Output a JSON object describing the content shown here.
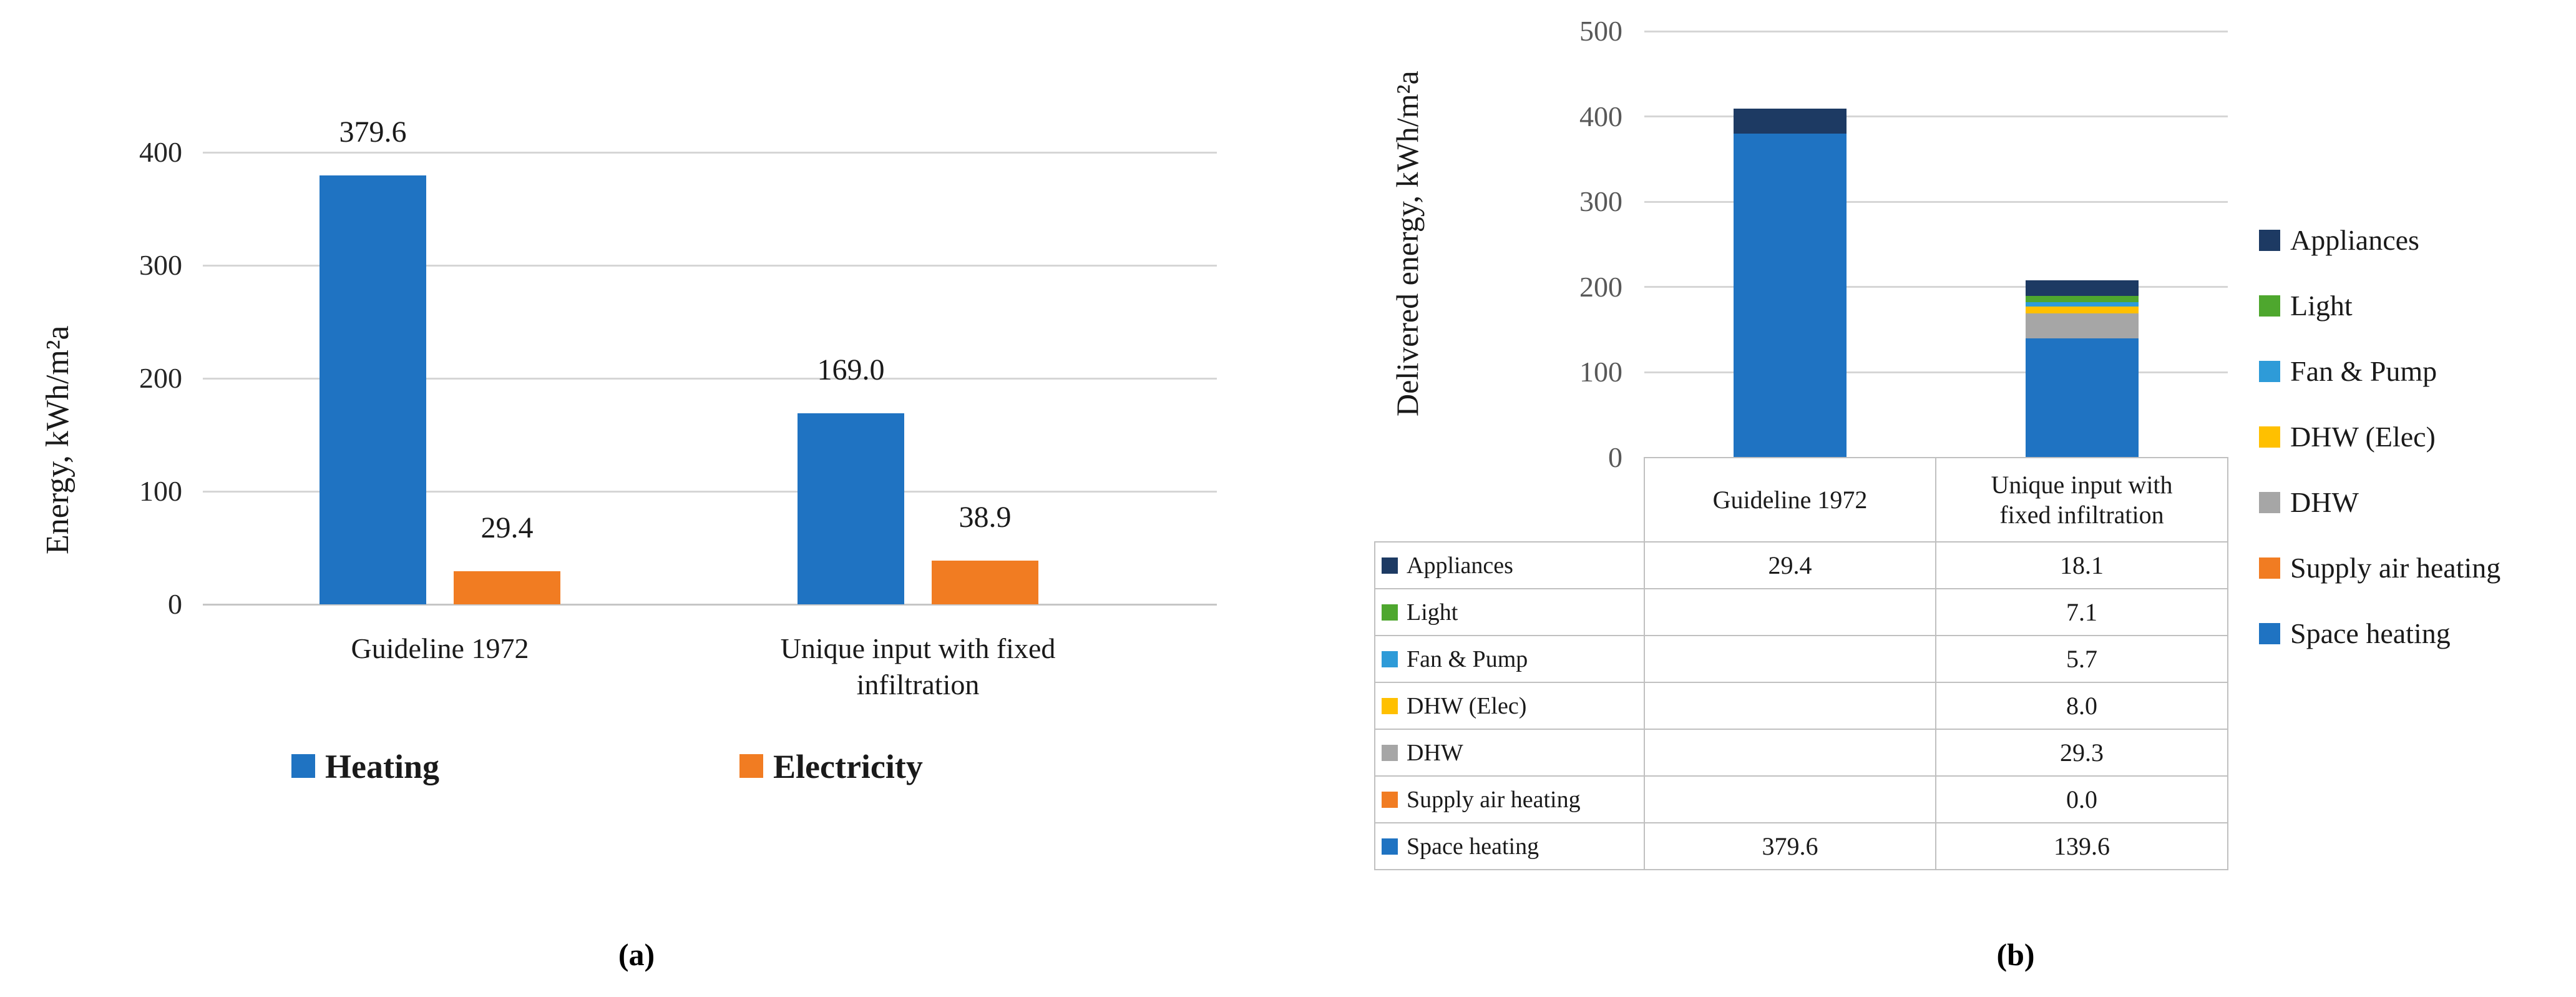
{
  "figure": {
    "caption_a": "(a)",
    "caption_b": "(b)"
  },
  "colors": {
    "heating": "#1F73C2",
    "electricity": "#F17C22",
    "appliances": "#1D3A63",
    "light": "#4EA72E",
    "fan_pump": "#2E9BD8",
    "dhw_elec": "#FFC000",
    "dhw": "#A6A6A6",
    "supply_air": "#F17C22",
    "space_heating": "#1F73C2",
    "gridline": "#D6D6D6",
    "baseline": "#C6C6C6",
    "table_border": "#C0C0C0",
    "tick_a": "#262626",
    "tick_b": "#595959"
  },
  "chart_data": [
    {
      "id": "a",
      "type": "bar",
      "title": "",
      "ylabel": "Energy, kWh/m²a",
      "xlabel": "",
      "ylim": [
        0,
        400
      ],
      "yticks": [
        0,
        100,
        200,
        300,
        400
      ],
      "grid": true,
      "legend_position": "bottom",
      "categories": [
        "Guideline 1972",
        "Unique input with fixed infiltration"
      ],
      "category_lines": [
        [
          "Guideline 1972"
        ],
        [
          "Unique input with fixed",
          "infiltration"
        ]
      ],
      "series": [
        {
          "name": "Heating",
          "color_key": "heating",
          "values": [
            379.6,
            169.0
          ],
          "labels": [
            "379.6",
            "169.0"
          ]
        },
        {
          "name": "Electricity",
          "color_key": "electricity",
          "values": [
            29.4,
            38.9
          ],
          "labels": [
            "29.4",
            "38.9"
          ]
        }
      ]
    },
    {
      "id": "b",
      "type": "stacked-bar",
      "title": "",
      "ylabel": "Delivered energy, kWh/m²a",
      "xlabel": "",
      "ylim": [
        0,
        500
      ],
      "yticks": [
        0,
        100,
        200,
        300,
        400,
        500
      ],
      "grid": true,
      "legend_position": "right",
      "categories": [
        "Guideline 1972",
        "Unique input with fixed infiltration"
      ],
      "category_lines": [
        [
          "Guideline 1972"
        ],
        [
          "Unique input with",
          "fixed infiltration"
        ]
      ],
      "series": [
        {
          "name": "Appliances",
          "color_key": "appliances",
          "values": [
            29.4,
            18.1
          ],
          "table": [
            "29.4",
            "18.1"
          ]
        },
        {
          "name": "Light",
          "color_key": "light",
          "values": [
            0,
            7.1
          ],
          "table": [
            "",
            "7.1"
          ]
        },
        {
          "name": "Fan & Pump",
          "color_key": "fan_pump",
          "values": [
            0,
            5.7
          ],
          "table": [
            "",
            "5.7"
          ]
        },
        {
          "name": "DHW (Elec)",
          "color_key": "dhw_elec",
          "values": [
            0,
            8.0
          ],
          "table": [
            "",
            "8.0"
          ]
        },
        {
          "name": "DHW",
          "color_key": "dhw",
          "values": [
            0,
            29.3
          ],
          "table": [
            "",
            "29.3"
          ]
        },
        {
          "name": "Supply air heating",
          "color_key": "supply_air",
          "values": [
            0,
            0.0
          ],
          "table": [
            "",
            "0.0"
          ]
        },
        {
          "name": "Space heating",
          "color_key": "space_heating",
          "values": [
            379.6,
            139.6
          ],
          "table": [
            "379.6",
            "139.6"
          ]
        }
      ]
    }
  ]
}
